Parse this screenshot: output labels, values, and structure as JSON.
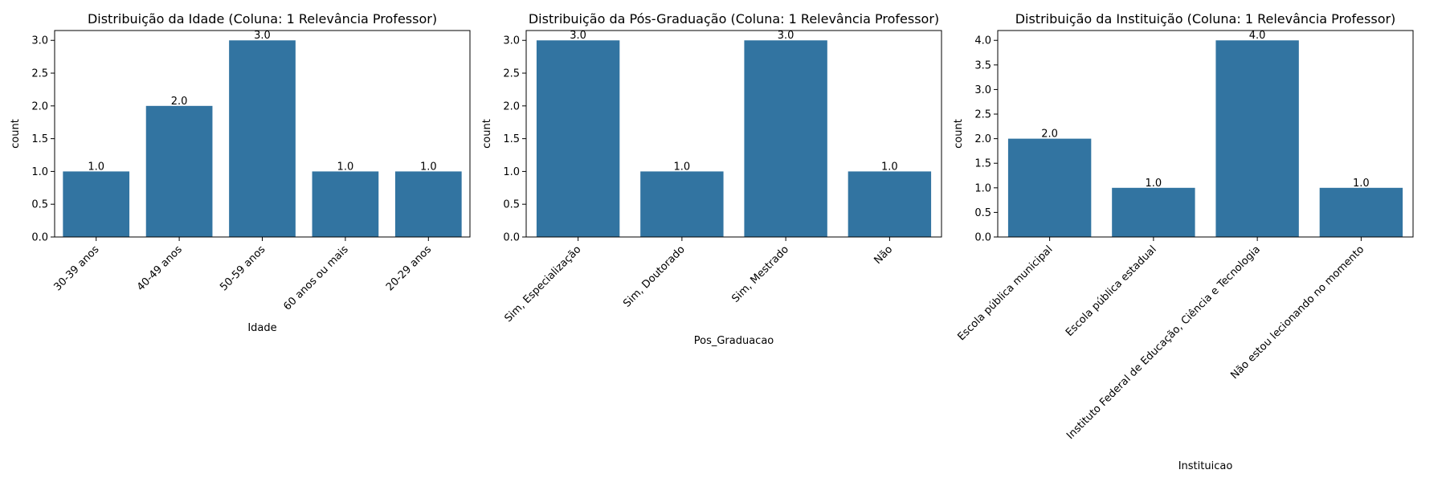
{
  "chart_data": [
    {
      "type": "bar",
      "title": "Distribuição da Idade (Coluna: 1 Relevância Professor)",
      "xlabel": "Idade",
      "ylabel": "count",
      "categories": [
        "30-39 anos",
        "40-49 anos",
        "50-59 anos",
        "60 anos ou mais",
        "20-29 anos"
      ],
      "values": [
        1.0,
        2.0,
        3.0,
        1.0,
        1.0
      ],
      "data_labels": [
        "1.0",
        "2.0",
        "3.0",
        "1.0",
        "1.0"
      ],
      "ylim": [
        0,
        3.15
      ],
      "yticks": [
        "0.0",
        "0.5",
        "1.0",
        "1.5",
        "2.0",
        "2.5",
        "3.0"
      ],
      "grid": false,
      "bar_color": "#3274a1"
    },
    {
      "type": "bar",
      "title": "Distribuição da Pós-Graduação (Coluna: 1 Relevância Professor)",
      "xlabel": "Pos_Graduacao",
      "ylabel": "count",
      "categories": [
        "Sim, Especialização",
        "Sim, Doutorado",
        "Sim, Mestrado",
        "Não"
      ],
      "values": [
        3.0,
        1.0,
        3.0,
        1.0
      ],
      "data_labels": [
        "3.0",
        "1.0",
        "3.0",
        "1.0"
      ],
      "ylim": [
        0,
        3.15
      ],
      "yticks": [
        "0.0",
        "0.5",
        "1.0",
        "1.5",
        "2.0",
        "2.5",
        "3.0"
      ],
      "grid": false,
      "bar_color": "#3274a1"
    },
    {
      "type": "bar",
      "title": "Distribuição da Instituição (Coluna: 1 Relevância Professor)",
      "xlabel": "Instituicao",
      "ylabel": "count",
      "categories": [
        "Escola pública municipal",
        "Escola pública estadual",
        "Instituto Federal de Educação, Ciência e Tecnologia",
        "Não estou lecionando no momento"
      ],
      "values": [
        2.0,
        1.0,
        4.0,
        1.0
      ],
      "data_labels": [
        "2.0",
        "1.0",
        "4.0",
        "1.0"
      ],
      "ylim": [
        0,
        4.2
      ],
      "yticks": [
        "0.0",
        "0.5",
        "1.0",
        "1.5",
        "2.0",
        "2.5",
        "3.0",
        "3.5",
        "4.0"
      ],
      "grid": false,
      "bar_color": "#3274a1"
    }
  ]
}
